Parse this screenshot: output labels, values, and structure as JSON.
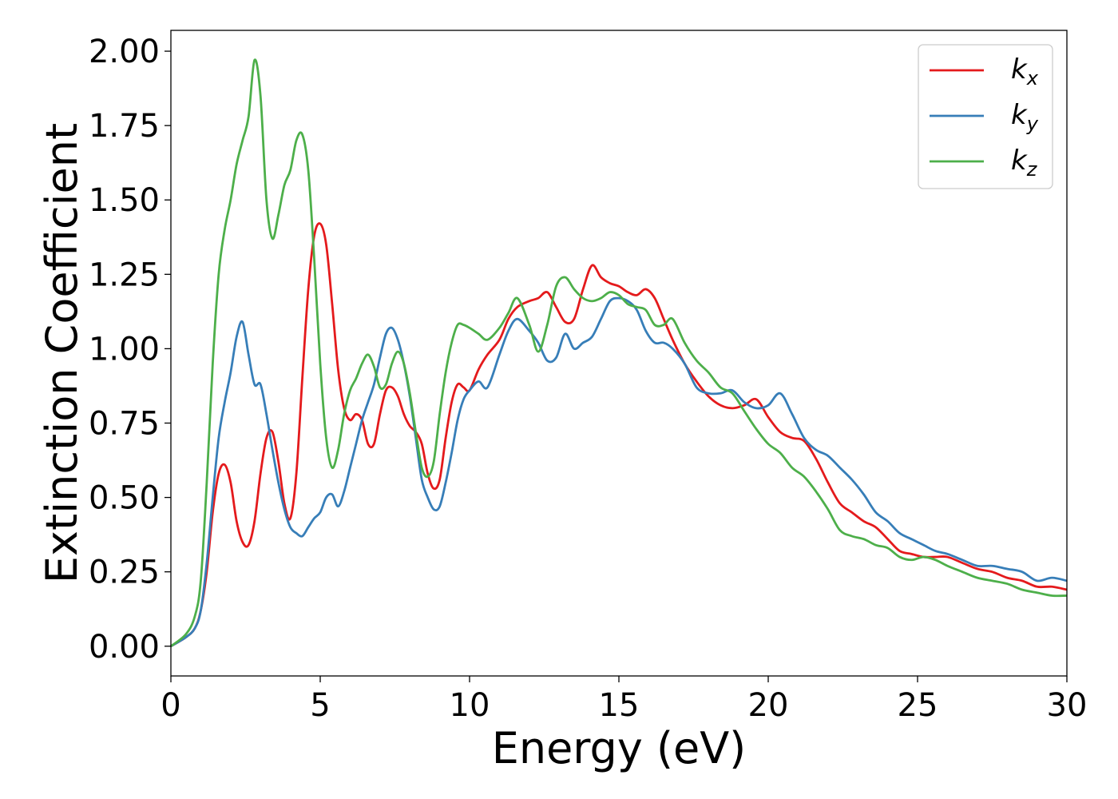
{
  "chart_data": {
    "type": "line",
    "title": "",
    "xlabel": "Energy (eV)",
    "ylabel": "Extinction Coefficient",
    "xlim": [
      0,
      30
    ],
    "ylim": [
      -0.1,
      2.07
    ],
    "xticks": [
      0,
      5,
      10,
      15,
      20,
      25,
      30
    ],
    "xtick_labels": [
      "0",
      "5",
      "10",
      "15",
      "20",
      "25",
      "30"
    ],
    "yticks": [
      0,
      0.25,
      0.5,
      0.75,
      1.0,
      1.25,
      1.5,
      1.75,
      2.0
    ],
    "ytick_labels": [
      "0.00",
      "0.25",
      "0.50",
      "0.75",
      "1.00",
      "1.25",
      "1.50",
      "1.75",
      "2.00"
    ],
    "grid": false,
    "legend_position": "top-right",
    "series": [
      {
        "name": "k_x",
        "base": "k",
        "sub": "x",
        "color": "#e41a1c",
        "x": [
          0,
          0.5,
          0.8,
          1.0,
          1.2,
          1.4,
          1.6,
          1.8,
          2.0,
          2.2,
          2.4,
          2.6,
          2.8,
          3.0,
          3.2,
          3.4,
          3.6,
          3.8,
          4.0,
          4.2,
          4.4,
          4.6,
          4.8,
          5.0,
          5.2,
          5.4,
          5.6,
          5.8,
          6.0,
          6.2,
          6.4,
          6.6,
          6.8,
          7.0,
          7.2,
          7.4,
          7.6,
          7.8,
          8.0,
          8.2,
          8.4,
          8.6,
          8.8,
          9.0,
          9.2,
          9.4,
          9.6,
          9.8,
          10.0,
          10.3,
          10.6,
          11.0,
          11.3,
          11.6,
          12.0,
          12.3,
          12.6,
          12.9,
          13.2,
          13.5,
          13.8,
          14.1,
          14.4,
          14.7,
          15.0,
          15.3,
          15.6,
          15.9,
          16.2,
          16.5,
          16.8,
          17.2,
          17.6,
          18.0,
          18.4,
          18.8,
          19.2,
          19.6,
          20.0,
          20.4,
          20.8,
          21.2,
          21.6,
          22.0,
          22.4,
          22.8,
          23.2,
          23.6,
          24.0,
          24.4,
          24.8,
          25.2,
          25.6,
          26.0,
          26.5,
          27.0,
          27.5,
          28.0,
          28.5,
          29.0,
          29.5,
          30.0
        ],
        "y": [
          0.0,
          0.03,
          0.06,
          0.12,
          0.25,
          0.45,
          0.58,
          0.61,
          0.55,
          0.42,
          0.35,
          0.34,
          0.42,
          0.58,
          0.7,
          0.72,
          0.62,
          0.48,
          0.43,
          0.58,
          0.9,
          1.2,
          1.38,
          1.42,
          1.35,
          1.15,
          0.93,
          0.8,
          0.76,
          0.78,
          0.76,
          0.68,
          0.68,
          0.78,
          0.86,
          0.87,
          0.84,
          0.78,
          0.74,
          0.72,
          0.68,
          0.58,
          0.53,
          0.56,
          0.7,
          0.82,
          0.88,
          0.87,
          0.86,
          0.93,
          0.98,
          1.03,
          1.1,
          1.14,
          1.16,
          1.17,
          1.19,
          1.14,
          1.09,
          1.1,
          1.2,
          1.28,
          1.24,
          1.22,
          1.21,
          1.19,
          1.18,
          1.2,
          1.17,
          1.1,
          1.03,
          0.95,
          0.89,
          0.84,
          0.81,
          0.8,
          0.81,
          0.83,
          0.77,
          0.72,
          0.7,
          0.69,
          0.63,
          0.55,
          0.48,
          0.45,
          0.42,
          0.4,
          0.36,
          0.32,
          0.31,
          0.3,
          0.3,
          0.3,
          0.28,
          0.26,
          0.25,
          0.23,
          0.22,
          0.2,
          0.2,
          0.19
        ]
      },
      {
        "name": "k_y",
        "base": "k",
        "sub": "y",
        "color": "#377eb8",
        "x": [
          0,
          0.5,
          0.8,
          1.0,
          1.2,
          1.4,
          1.6,
          1.8,
          2.0,
          2.2,
          2.4,
          2.6,
          2.8,
          3.0,
          3.2,
          3.4,
          3.6,
          3.8,
          4.0,
          4.2,
          4.4,
          4.6,
          4.8,
          5.0,
          5.2,
          5.4,
          5.6,
          5.8,
          6.0,
          6.2,
          6.4,
          6.6,
          6.8,
          7.0,
          7.2,
          7.4,
          7.6,
          7.8,
          8.0,
          8.2,
          8.4,
          8.6,
          8.8,
          9.0,
          9.2,
          9.4,
          9.6,
          9.8,
          10.0,
          10.3,
          10.6,
          11.0,
          11.3,
          11.6,
          12.0,
          12.3,
          12.6,
          12.9,
          13.2,
          13.5,
          13.8,
          14.1,
          14.4,
          14.7,
          15.0,
          15.3,
          15.6,
          15.9,
          16.2,
          16.5,
          16.8,
          17.2,
          17.6,
          18.0,
          18.4,
          18.8,
          19.2,
          19.6,
          20.0,
          20.4,
          20.8,
          21.2,
          21.6,
          22.0,
          22.4,
          22.8,
          23.2,
          23.6,
          24.0,
          24.4,
          24.8,
          25.2,
          25.6,
          26.0,
          26.5,
          27.0,
          27.5,
          28.0,
          28.5,
          29.0,
          29.5,
          30.0
        ],
        "y": [
          0.0,
          0.03,
          0.06,
          0.12,
          0.28,
          0.5,
          0.7,
          0.82,
          0.92,
          1.04,
          1.09,
          0.98,
          0.88,
          0.88,
          0.78,
          0.66,
          0.55,
          0.46,
          0.4,
          0.38,
          0.37,
          0.4,
          0.43,
          0.45,
          0.5,
          0.51,
          0.47,
          0.52,
          0.6,
          0.68,
          0.76,
          0.82,
          0.88,
          0.97,
          1.05,
          1.07,
          1.03,
          0.95,
          0.84,
          0.7,
          0.56,
          0.5,
          0.46,
          0.47,
          0.55,
          0.65,
          0.76,
          0.83,
          0.86,
          0.89,
          0.87,
          0.98,
          1.06,
          1.1,
          1.06,
          1.02,
          0.96,
          0.97,
          1.05,
          1.0,
          1.02,
          1.04,
          1.1,
          1.16,
          1.17,
          1.16,
          1.13,
          1.06,
          1.02,
          1.02,
          1.0,
          0.95,
          0.87,
          0.85,
          0.85,
          0.86,
          0.82,
          0.8,
          0.81,
          0.85,
          0.78,
          0.7,
          0.66,
          0.64,
          0.6,
          0.56,
          0.51,
          0.45,
          0.42,
          0.38,
          0.36,
          0.34,
          0.32,
          0.31,
          0.29,
          0.27,
          0.27,
          0.26,
          0.25,
          0.22,
          0.23,
          0.22
        ]
      },
      {
        "name": "k_z",
        "base": "k",
        "sub": "z",
        "color": "#4daf4a",
        "x": [
          0,
          0.5,
          0.8,
          1.0,
          1.2,
          1.4,
          1.6,
          1.8,
          2.0,
          2.2,
          2.4,
          2.6,
          2.8,
          3.0,
          3.2,
          3.4,
          3.6,
          3.8,
          4.0,
          4.2,
          4.4,
          4.6,
          4.8,
          5.0,
          5.2,
          5.4,
          5.6,
          5.8,
          6.0,
          6.2,
          6.4,
          6.6,
          6.8,
          7.0,
          7.2,
          7.4,
          7.6,
          7.8,
          8.0,
          8.2,
          8.4,
          8.6,
          8.8,
          9.0,
          9.2,
          9.4,
          9.6,
          9.8,
          10.0,
          10.3,
          10.6,
          11.0,
          11.3,
          11.6,
          12.0,
          12.3,
          12.6,
          12.9,
          13.2,
          13.5,
          13.8,
          14.1,
          14.4,
          14.7,
          15.0,
          15.3,
          15.6,
          15.9,
          16.2,
          16.5,
          16.8,
          17.2,
          17.6,
          18.0,
          18.4,
          18.8,
          19.2,
          19.6,
          20.0,
          20.4,
          20.8,
          21.2,
          21.6,
          22.0,
          22.4,
          22.8,
          23.2,
          23.6,
          24.0,
          24.4,
          24.8,
          25.2,
          25.6,
          26.0,
          26.5,
          27.0,
          27.5,
          28.0,
          28.5,
          29.0,
          29.5,
          30.0
        ],
        "y": [
          0.0,
          0.04,
          0.1,
          0.22,
          0.55,
          0.95,
          1.25,
          1.4,
          1.5,
          1.62,
          1.7,
          1.78,
          1.97,
          1.85,
          1.5,
          1.37,
          1.45,
          1.55,
          1.6,
          1.7,
          1.72,
          1.6,
          1.3,
          0.95,
          0.7,
          0.6,
          0.66,
          0.78,
          0.86,
          0.9,
          0.95,
          0.98,
          0.94,
          0.87,
          0.88,
          0.95,
          0.99,
          0.95,
          0.85,
          0.72,
          0.6,
          0.57,
          0.62,
          0.78,
          0.92,
          1.02,
          1.08,
          1.08,
          1.07,
          1.05,
          1.03,
          1.07,
          1.12,
          1.17,
          1.08,
          0.99,
          1.08,
          1.21,
          1.24,
          1.2,
          1.17,
          1.16,
          1.17,
          1.19,
          1.18,
          1.15,
          1.14,
          1.13,
          1.08,
          1.08,
          1.1,
          1.02,
          0.96,
          0.92,
          0.87,
          0.85,
          0.79,
          0.73,
          0.68,
          0.65,
          0.6,
          0.57,
          0.52,
          0.46,
          0.39,
          0.37,
          0.36,
          0.34,
          0.33,
          0.3,
          0.29,
          0.3,
          0.29,
          0.27,
          0.25,
          0.23,
          0.22,
          0.21,
          0.19,
          0.18,
          0.17,
          0.17
        ]
      }
    ]
  }
}
